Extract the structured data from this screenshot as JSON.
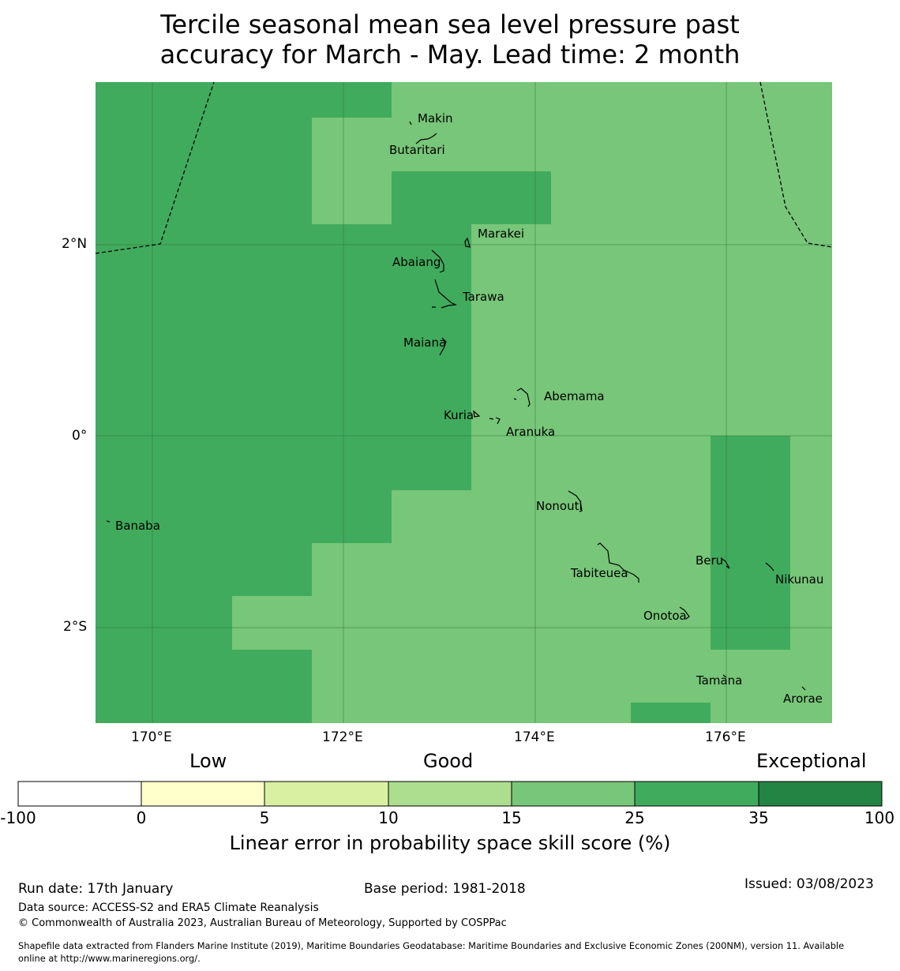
{
  "title": {
    "line1": "Tercile seasonal mean sea level pressure past",
    "line2": "accuracy for March - May. Lead time: 2 month"
  },
  "map": {
    "lon_ticks": [
      "170°E",
      "172°E",
      "174°E",
      "176°E"
    ],
    "lat_ticks": [
      "2°N",
      "0°",
      "2°S"
    ],
    "extent": {
      "lon_min": 169.4,
      "lon_max": 177.1,
      "lat_min": -2.98,
      "lat_max": 3.7
    },
    "cell_colors": {
      "dark": "#41ab5d",
      "light": "#78c679"
    },
    "islands": [
      {
        "name": "Makin"
      },
      {
        "name": "Butaritari"
      },
      {
        "name": "Marakei"
      },
      {
        "name": "Abaiang"
      },
      {
        "name": "Tarawa"
      },
      {
        "name": "Maiana"
      },
      {
        "name": "Abemama"
      },
      {
        "name": "Kuria"
      },
      {
        "name": "Aranuka"
      },
      {
        "name": "Banaba"
      },
      {
        "name": "Nonouti"
      },
      {
        "name": "Beru"
      },
      {
        "name": "Tabiteuea"
      },
      {
        "name": "Nikunau"
      },
      {
        "name": "Onotoa"
      },
      {
        "name": "Tamana"
      },
      {
        "name": "Arorae"
      }
    ]
  },
  "colorbar": {
    "categories": [
      "Low",
      "Good",
      "Exceptional"
    ],
    "ticks": [
      "-100",
      "0",
      "5",
      "10",
      "15",
      "25",
      "35",
      "100"
    ],
    "colors": [
      "#ffffff",
      "#ffffcc",
      "#d9f0a3",
      "#addd8e",
      "#78c679",
      "#41ab5d",
      "#238443"
    ],
    "label": "Linear error in probability space skill score (%)"
  },
  "footer": {
    "run_date": "Run date: 17th January",
    "base_period": "Base period: 1981-2018",
    "issued": "Issued: 03/08/2023",
    "data_source": "Data source: ACCESS-S2 and ERA5 Climate Reanalysis",
    "copyright": "© Commonwealth of Australia 2023, Australian Bureau of Meteorology, Supported by COSPPac",
    "shapefile_line1": "Shapefile data extracted from Flanders Marine Institute (2019), Maritime Boundaries Geodatabase: Maritime Boundaries and Exclusive Economic Zones (200NM), version 11. Available",
    "shapefile_line2": "online at http://www.marineregions.org/."
  }
}
